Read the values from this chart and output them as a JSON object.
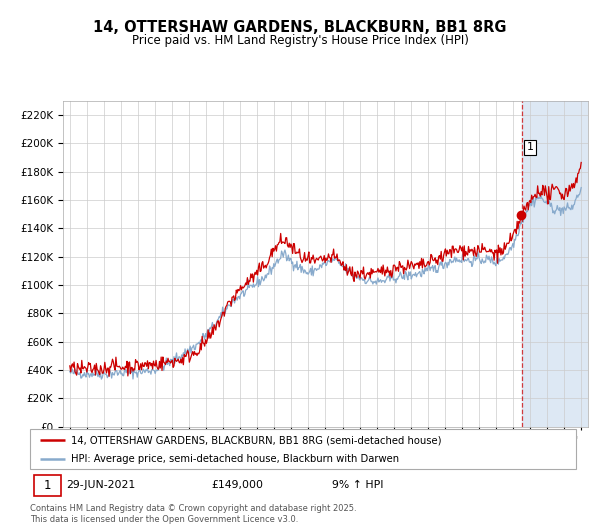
{
  "title": "14, OTTERSHAW GARDENS, BLACKBURN, BB1 8RG",
  "subtitle": "Price paid vs. HM Land Registry's House Price Index (HPI)",
  "legend_line1": "14, OTTERSHAW GARDENS, BLACKBURN, BB1 8RG (semi-detached house)",
  "legend_line2": "HPI: Average price, semi-detached house, Blackburn with Darwen",
  "annotation_label": "1",
  "annotation_date": "29-JUN-2021",
  "annotation_price": "£149,000",
  "annotation_hpi": "9% ↑ HPI",
  "vline_x": 2021.5,
  "footnote1": "Contains HM Land Registry data © Crown copyright and database right 2025.",
  "footnote2": "This data is licensed under the Open Government Licence v3.0.",
  "red_color": "#cc0000",
  "blue_color": "#88aacc",
  "background_shade": "#dde8f4",
  "ylim": [
    0,
    230000
  ],
  "xlim_start": 1994.6,
  "xlim_end": 2025.4,
  "ytick_step": 20000,
  "title_fontsize": 10.5,
  "subtitle_fontsize": 8.5
}
